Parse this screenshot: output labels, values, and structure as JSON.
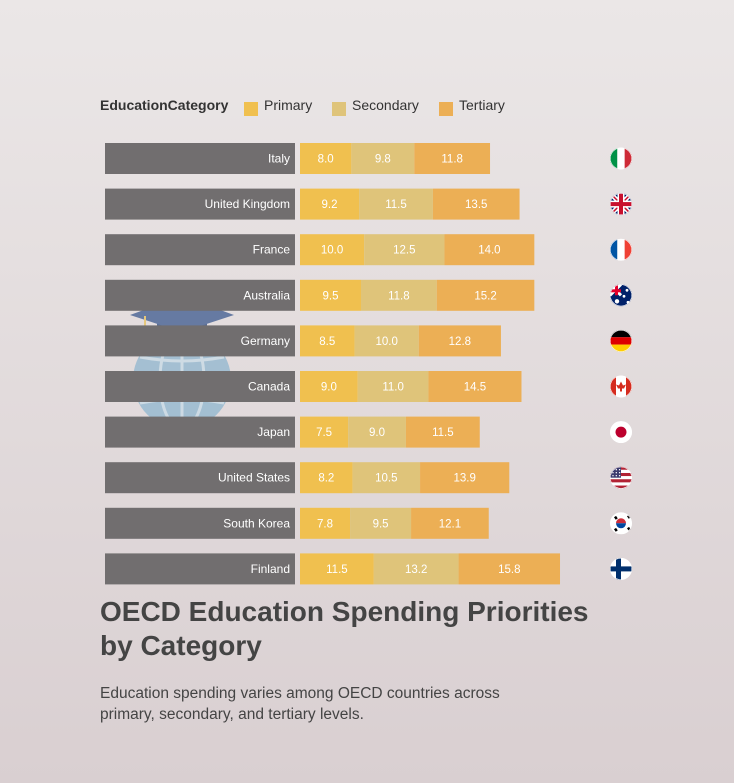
{
  "title": "OECD Education Spending Priorities by Category",
  "subtitle": "Education spending varies among OECD countries across primary, secondary, and tertiary levels.",
  "colors": {
    "primary": "#f0c04f",
    "secondary": "#dfc47a",
    "tertiary": "#ecaf55",
    "label_bar": "#716e6f"
  },
  "chart_data": {
    "type": "bar",
    "orientation": "horizontal",
    "stacked": true,
    "legend_title": "EducationCategory",
    "categories": [
      "Italy",
      "United Kingdom",
      "France",
      "Australia",
      "Germany",
      "Canada",
      "Japan",
      "United States",
      "South Korea",
      "Finland"
    ],
    "series": [
      {
        "name": "Primary",
        "values": [
          8.0,
          9.2,
          10.0,
          9.5,
          8.5,
          9.0,
          7.5,
          8.2,
          7.8,
          11.5
        ]
      },
      {
        "name": "Secondary",
        "values": [
          9.8,
          11.5,
          12.5,
          11.8,
          10.0,
          11.0,
          9.0,
          10.5,
          9.5,
          13.2
        ]
      },
      {
        "name": "Tertiary",
        "values": [
          11.8,
          13.5,
          14.0,
          15.2,
          12.8,
          14.5,
          11.5,
          13.9,
          12.1,
          15.8
        ]
      }
    ],
    "value_labels": [
      [
        "8.0",
        "9.8",
        "11.8"
      ],
      [
        "9.2",
        "11.5",
        "13.5"
      ],
      [
        "10.0",
        "12.5",
        "14.0"
      ],
      [
        "9.5",
        "11.8",
        "15.2"
      ],
      [
        "8.5",
        "10.0",
        "12.8"
      ],
      [
        "9.0",
        "11.0",
        "14.5"
      ],
      [
        "7.5",
        "9.0",
        "11.5"
      ],
      [
        "8.2",
        "10.5",
        "13.9"
      ],
      [
        "7.8",
        "9.5",
        "12.1"
      ],
      [
        "11.5",
        "13.2",
        "15.8"
      ]
    ],
    "flags": [
      "italy-flag",
      "uk-flag",
      "france-flag",
      "australia-flag",
      "germany-flag",
      "canada-flag",
      "japan-flag",
      "usa-flag",
      "south-korea-flag",
      "finland-flag"
    ]
  }
}
